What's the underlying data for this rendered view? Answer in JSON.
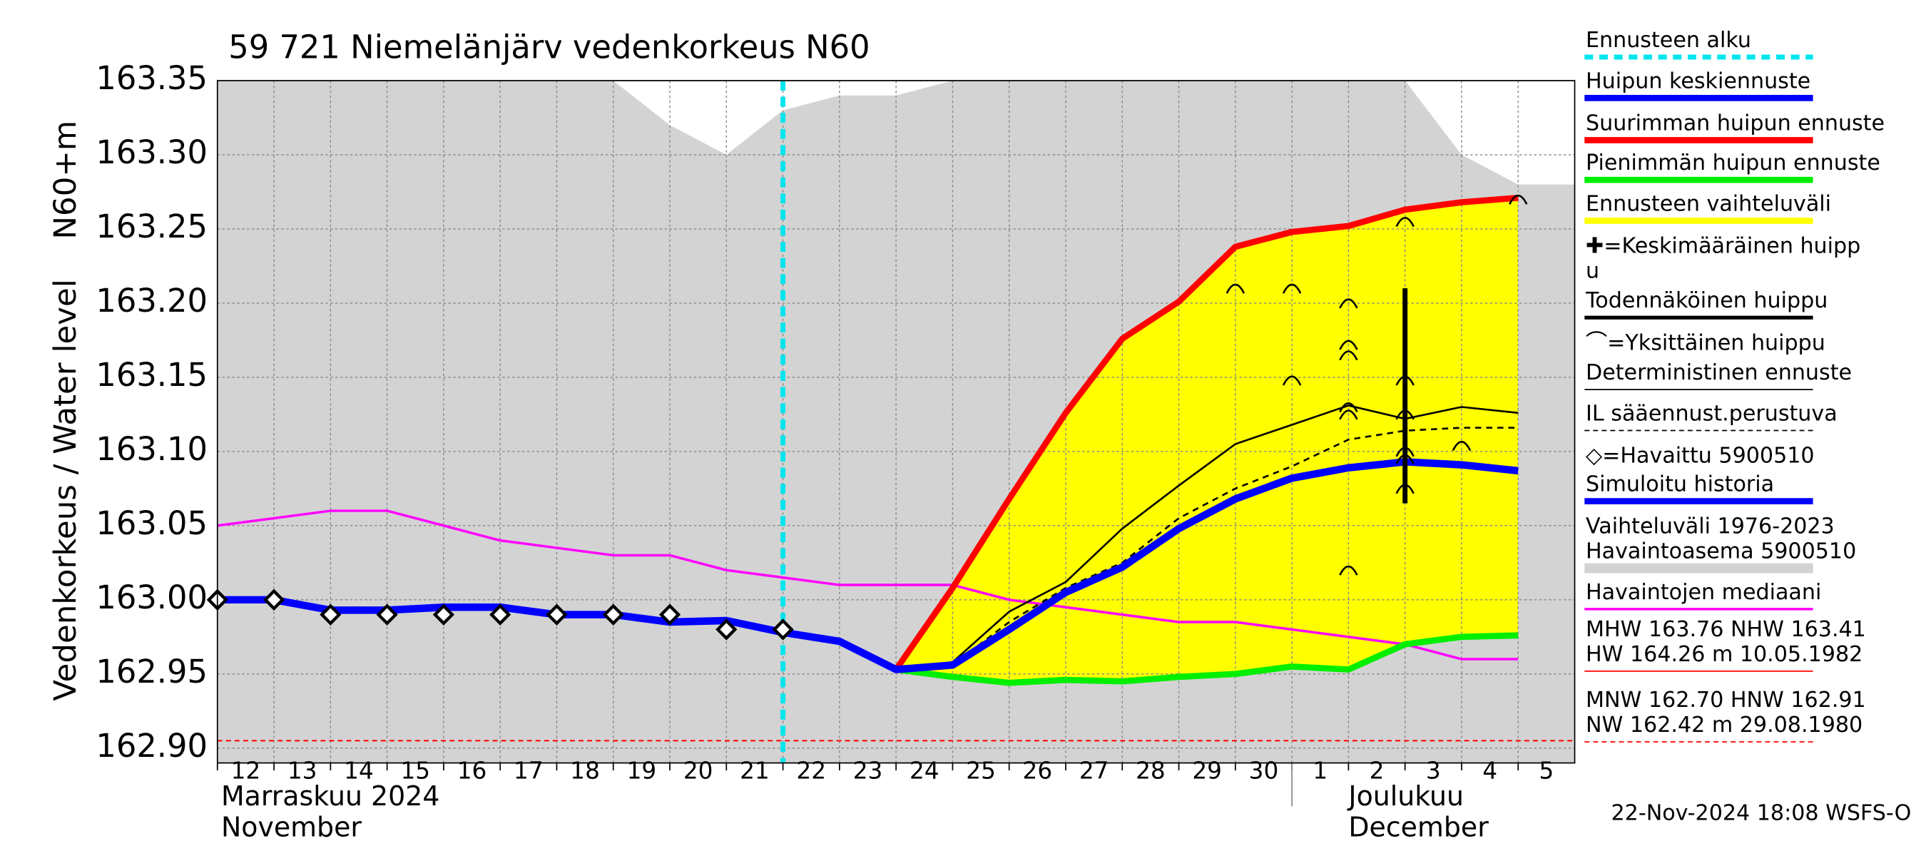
{
  "chart_data": {
    "type": "line",
    "title": "59 721 Niemelänjärv vedenkorkeus N60",
    "y_label_lines": [
      "Vedenkorkeus / Water level",
      "N60+m"
    ],
    "categories": [
      "12",
      "13",
      "14",
      "15",
      "16",
      "17",
      "18",
      "19",
      "20",
      "21",
      "22",
      "23",
      "24",
      "25",
      "26",
      "27",
      "28",
      "29",
      "30",
      "1",
      "2",
      "3",
      "4",
      "5"
    ],
    "month_labels": [
      {
        "at": "12",
        "lines": [
          "Marraskuu 2024",
          "November"
        ]
      },
      {
        "at": "2",
        "lines": [
          "Joulukuu",
          "December"
        ]
      }
    ],
    "ylim": [
      162.89,
      163.35
    ],
    "yticks": [
      {
        "value": 162.9,
        "label": "162.90"
      },
      162.95,
      {
        "value": 163.0,
        "label": "163.00"
      },
      163.05,
      {
        "value": 163.1,
        "label": "163.10"
      },
      163.15,
      {
        "value": 163.2,
        "label": "163.20"
      },
      163.25,
      {
        "value": 163.3,
        "label": "163.30"
      },
      163.35
    ],
    "grid": true,
    "forecast_start": "22",
    "forecast_start_color": "#00e5ee",
    "band_color": "#ffff00",
    "series": [
      {
        "style": "area",
        "color": "#d3d3d3",
        "values": [
          163.35,
          163.35,
          163.35,
          163.35,
          163.35,
          163.35,
          163.35,
          163.35,
          163.32,
          163.3,
          163.33,
          163.34,
          163.34,
          163.35,
          163.35,
          163.35,
          163.35,
          163.35,
          163.35,
          163.35,
          163.35,
          163.35,
          163.3,
          163.28
        ]
      },
      {
        "style": "line",
        "role": "max",
        "color": "#ff0000",
        "width": 5,
        "values": [
          null,
          null,
          null,
          null,
          null,
          null,
          null,
          null,
          null,
          null,
          null,
          null,
          162.953,
          163.008,
          163.068,
          163.126,
          163.176,
          163.201,
          163.238,
          163.248,
          163.252,
          163.263,
          163.268,
          163.271
        ]
      },
      {
        "style": "line",
        "role": "min",
        "color": "#00ee00",
        "width": 5,
        "values": [
          null,
          null,
          null,
          null,
          null,
          null,
          null,
          null,
          null,
          null,
          null,
          null,
          162.953,
          162.948,
          162.944,
          162.946,
          162.945,
          162.948,
          162.95,
          162.955,
          162.953,
          162.97,
          162.975,
          162.976
        ]
      },
      {
        "style": "line",
        "color": "#ff00ff",
        "width": 2,
        "values": [
          163.05,
          163.055,
          163.06,
          163.06,
          163.05,
          163.04,
          163.035,
          163.03,
          163.03,
          163.02,
          163.015,
          163.01,
          163.01,
          163.01,
          163.0,
          162.995,
          162.99,
          162.985,
          162.985,
          162.98,
          162.975,
          162.97,
          162.96,
          162.96
        ]
      },
      {
        "style": "dashed",
        "color": "#000000",
        "width": 1.5,
        "values": [
          null,
          null,
          null,
          null,
          null,
          null,
          null,
          null,
          null,
          null,
          null,
          null,
          162.953,
          162.956,
          162.985,
          163.008,
          163.025,
          163.055,
          163.075,
          163.09,
          163.108,
          163.114,
          163.116,
          163.116
        ]
      },
      {
        "style": "line",
        "color": "#000000",
        "width": 1.5,
        "values": [
          null,
          null,
          null,
          null,
          null,
          null,
          null,
          null,
          null,
          null,
          null,
          null,
          162.953,
          162.958,
          162.992,
          163.012,
          163.048,
          163.077,
          163.105,
          163.118,
          163.131,
          163.122,
          163.13,
          163.126
        ]
      },
      {
        "style": "line",
        "color": "#0000ff",
        "width": 6,
        "values": [
          163.0,
          163.0,
          162.993,
          162.993,
          162.995,
          162.995,
          162.99,
          162.99,
          162.985,
          162.986,
          162.978,
          162.972,
          162.953,
          162.956,
          162.98,
          163.005,
          163.022,
          163.048,
          163.068,
          163.082,
          163.089,
          163.093,
          163.091,
          163.087
        ]
      },
      {
        "style": "markers",
        "color": "#000000",
        "values": [
          163.0,
          163.0,
          162.99,
          162.99,
          162.99,
          162.99,
          162.99,
          162.99,
          162.99,
          162.98,
          162.98,
          null,
          null,
          null,
          null,
          null,
          null,
          null,
          null,
          null,
          null,
          null,
          null,
          null
        ]
      }
    ],
    "peaks": [
      {
        "x": "30",
        "y": 163.21
      },
      {
        "x": "1",
        "y": 163.21
      },
      {
        "x": "1",
        "y": 163.148
      },
      {
        "x": "2",
        "y": 163.2
      },
      {
        "x": "2",
        "y": 163.172
      },
      {
        "x": "2",
        "y": 163.165
      },
      {
        "x": "2",
        "y": 163.13
      },
      {
        "x": "2",
        "y": 163.125
      },
      {
        "x": "2",
        "y": 163.02
      },
      {
        "x": "3",
        "y": 163.255
      },
      {
        "x": "3",
        "y": 163.148
      },
      {
        "x": "3",
        "y": 163.125
      },
      {
        "x": "3",
        "y": 163.1
      },
      {
        "x": "3",
        "y": 163.095
      },
      {
        "x": "3",
        "y": 163.075
      },
      {
        "x": "4",
        "y": 163.104
      },
      {
        "x": "5",
        "y": 163.27
      }
    ],
    "probable_peak": {
      "x": "3",
      "low": 163.065,
      "high": 163.21
    },
    "hlines": [
      {
        "value": 162.905,
        "color": "#ff0000"
      }
    ],
    "legend": [
      {
        "lines": [
          "Ennusteen alku"
        ],
        "color": "#00e5ee",
        "width": 4,
        "dash": true
      },
      {
        "lines": [
          "Huipun keskiennuste"
        ],
        "color": "#0000ff",
        "width": 5
      },
      {
        "lines": [
          "Suurimman huipun ennuste"
        ],
        "color": "#ff0000",
        "width": 5
      },
      {
        "lines": [
          "Pienimmän huipun ennuste"
        ],
        "color": "#00ee00",
        "width": 5
      },
      {
        "lines": [
          "Ennusteen vaihteluväli"
        ],
        "color": "#ffff00",
        "width": 5
      },
      {
        "lines": [
          "✚=Keskimääräinen huipp",
          "u"
        ]
      },
      {
        "lines": [
          "Todennäköinen huippu"
        ],
        "color": "#000000",
        "width": 3
      },
      {
        "lines": [
          "⌒=Yksittäinen huippu"
        ]
      },
      {
        "lines": [
          "Deterministinen ennuste"
        ],
        "color": "#000000",
        "width": 1
      },
      {
        "lines": [
          "IL sääennust.perustuva"
        ],
        "color": "#000000",
        "width": 1,
        "dash": true
      },
      {
        "lines": [
          "◇=Havaittu 5900510"
        ]
      },
      {
        "lines": [
          "Simuloitu historia"
        ],
        "color": "#0000ff",
        "width": 5
      },
      {
        "lines": [
          "Vaihteluväli 1976-2023",
          " Havaintoasema 5900510"
        ],
        "color": "#d3d3d3",
        "width": 8
      },
      {
        "lines": [
          "Havaintojen mediaani"
        ],
        "color": "#ff00ff",
        "width": 2
      },
      {
        "lines": [
          "MHW 163.76 NHW 163.41",
          "HW 164.26 m 10.05.1982"
        ],
        "color": "#ff0000",
        "width": 1
      },
      {
        "lines": [
          "MNW 162.70 HNW 162.91",
          "NW 162.42 m 29.08.1980"
        ],
        "color": "#ff0000",
        "width": 1,
        "dash": true
      }
    ],
    "timestamp": "22-Nov-2024 18:08 WSFS-O"
  }
}
